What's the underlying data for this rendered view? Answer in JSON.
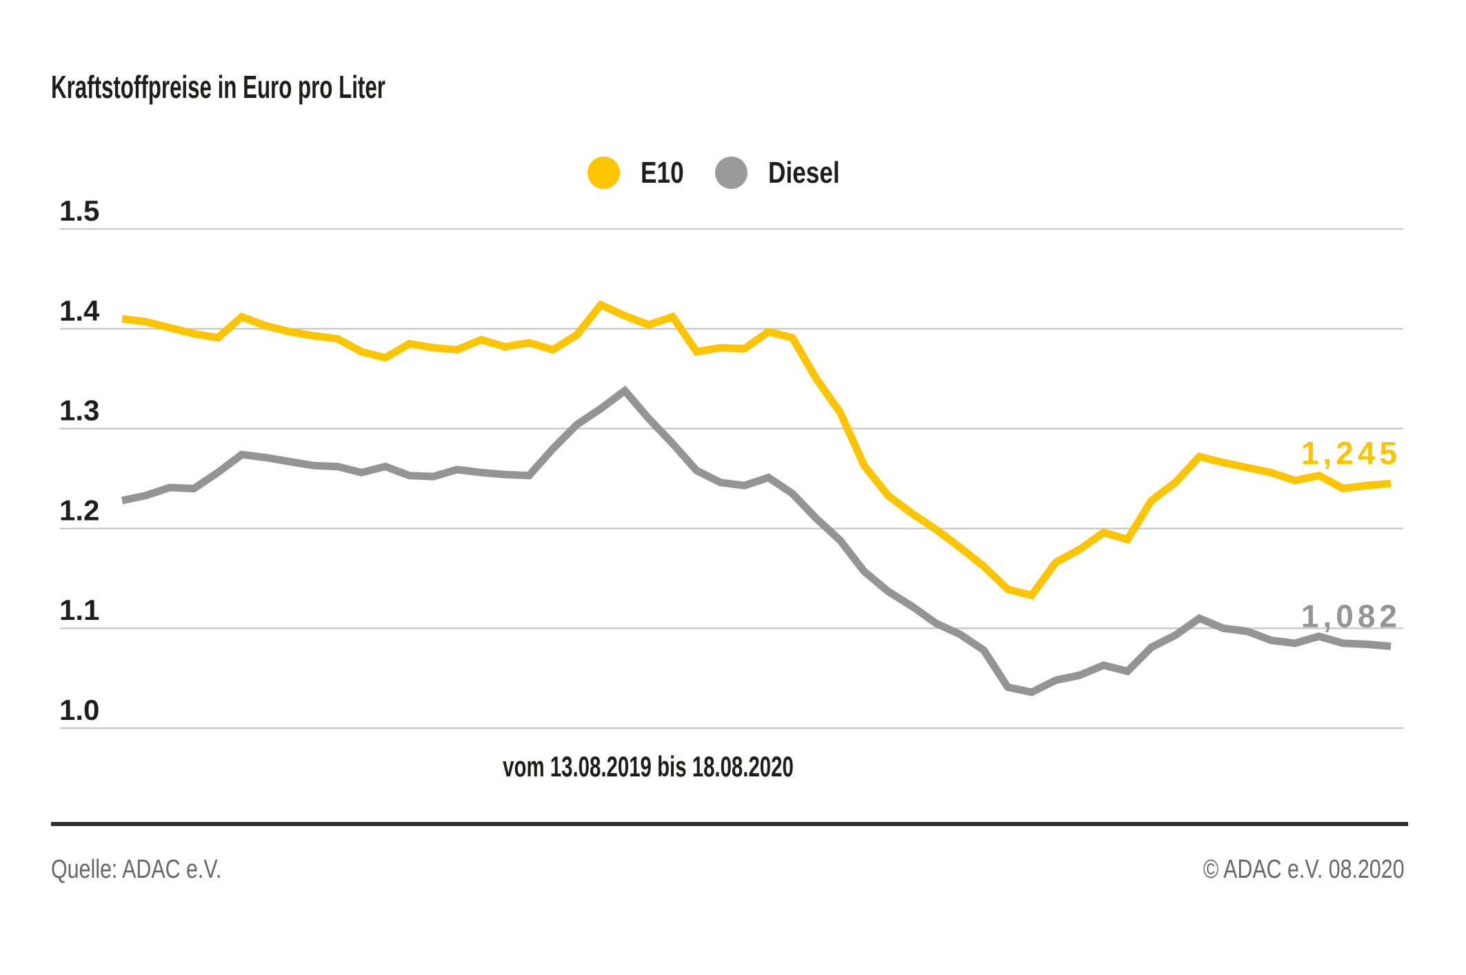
{
  "header": {
    "title": "Kraftstoffpreise in Euro pro Liter"
  },
  "legend": {
    "items": [
      {
        "id": "e10",
        "label": "E10",
        "color": "#FCC500"
      },
      {
        "id": "diesel",
        "label": "Diesel",
        "color": "#9a9a9a"
      }
    ]
  },
  "chart_data": {
    "type": "line",
    "title": "Kraftstoffpreise in Euro pro Liter",
    "subtitle": "vom 13.08.2019 bis 18.08.2020",
    "x_range": {
      "start": "13.08.2019",
      "end": "18.08.2020",
      "interval": "weekly"
    },
    "ylim": [
      1.0,
      1.5
    ],
    "grid": "horizontal",
    "legend_position": "top-center",
    "y_ticks": [
      {
        "label": "1.5",
        "value": 1.5
      },
      {
        "label": "1.4",
        "value": 1.4
      },
      {
        "label": "1.3",
        "value": 1.3
      },
      {
        "label": "1.2",
        "value": 1.2
      },
      {
        "label": "1.1",
        "value": 1.1
      },
      {
        "label": "1.0",
        "value": 1.0
      }
    ],
    "series": [
      {
        "name": "E10",
        "color": "#FCC500",
        "end_label": "1,245",
        "end_value": 1.245,
        "values": [
          1.41,
          1.407,
          1.401,
          1.395,
          1.391,
          1.412,
          1.403,
          1.397,
          1.393,
          1.39,
          1.377,
          1.371,
          1.385,
          1.381,
          1.379,
          1.389,
          1.382,
          1.386,
          1.379,
          1.394,
          1.424,
          1.413,
          1.404,
          1.412,
          1.377,
          1.381,
          1.38,
          1.397,
          1.391,
          1.35,
          1.316,
          1.263,
          1.233,
          1.215,
          1.199,
          1.181,
          1.162,
          1.139,
          1.133,
          1.166,
          1.179,
          1.196,
          1.189,
          1.228,
          1.246,
          1.272,
          1.266,
          1.261,
          1.256,
          1.248,
          1.253,
          1.24,
          1.243,
          1.245
        ]
      },
      {
        "name": "Diesel",
        "color": "#949494",
        "end_label": "1,082",
        "end_value": 1.082,
        "values": [
          1.228,
          1.233,
          1.241,
          1.24,
          1.256,
          1.274,
          1.271,
          1.267,
          1.263,
          1.262,
          1.256,
          1.262,
          1.253,
          1.252,
          1.259,
          1.256,
          1.254,
          1.253,
          1.28,
          1.304,
          1.32,
          1.338,
          1.31,
          1.285,
          1.258,
          1.246,
          1.243,
          1.251,
          1.235,
          1.21,
          1.188,
          1.157,
          1.137,
          1.122,
          1.105,
          1.094,
          1.078,
          1.041,
          1.036,
          1.048,
          1.053,
          1.063,
          1.057,
          1.081,
          1.093,
          1.11,
          1.1,
          1.097,
          1.088,
          1.085,
          1.092,
          1.085,
          1.084,
          1.082
        ]
      }
    ]
  },
  "footer": {
    "source": "Quelle: ADAC e.V.",
    "copyright": "© ADAC e.V. 08.2020"
  },
  "colors": {
    "background": "#ffffff",
    "title_text": "#1d1d1b",
    "axis_label": "#1d1d1b",
    "grid_line": "#c8c8c8",
    "e10_line": "#FCC500",
    "diesel_line": "#949494",
    "e10_label": "#FCC500",
    "diesel_label": "#9a9a9a",
    "footer_rule": "#2f2f31",
    "footer_text": "#676767"
  }
}
